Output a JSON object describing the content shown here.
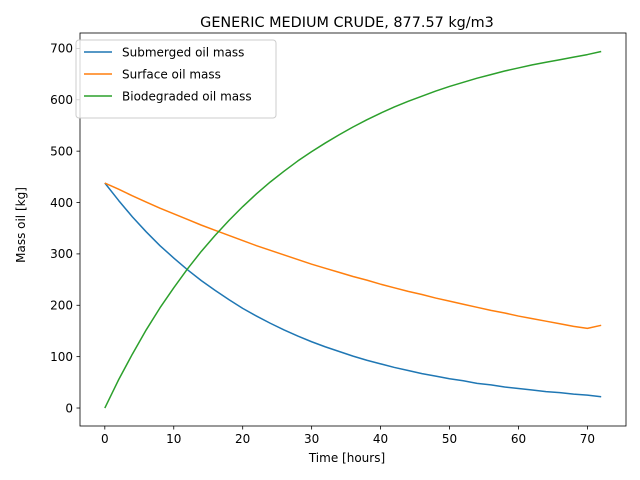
{
  "chart_data": {
    "type": "line",
    "title": "GENERIC MEDIUM CRUDE,  877.57 kg/m3",
    "xlabel": "Time [hours]",
    "ylabel": "Mass oil [kg]",
    "xlim": [
      -3.6,
      75.6
    ],
    "ylim": [
      -35,
      730
    ],
    "xticks": [
      0,
      10,
      20,
      30,
      40,
      50,
      60,
      70
    ],
    "yticks": [
      0,
      100,
      200,
      300,
      400,
      500,
      600,
      700
    ],
    "grid": false,
    "legend_position": "upper-left",
    "x": [
      0,
      2,
      4,
      6,
      8,
      10,
      12,
      14,
      16,
      18,
      20,
      22,
      24,
      26,
      28,
      30,
      32,
      34,
      36,
      38,
      40,
      42,
      44,
      46,
      48,
      50,
      52,
      54,
      56,
      58,
      60,
      62,
      64,
      66,
      68,
      70,
      72
    ],
    "series": [
      {
        "name": "Submerged oil mass",
        "color": "#1f77b4",
        "values": [
          438,
          404,
          372,
          343,
          316,
          292,
          269,
          248,
          229,
          211,
          194,
          179,
          165,
          152,
          140,
          129,
          119,
          110,
          101,
          93,
          86,
          79,
          73,
          67,
          62,
          57,
          53,
          48,
          45,
          41,
          38,
          35,
          32,
          30,
          27,
          25,
          22
        ]
      },
      {
        "name": "Surface oil mass",
        "color": "#ff7f0e",
        "values": [
          438,
          426,
          413,
          401,
          389,
          378,
          367,
          356,
          346,
          336,
          326,
          316,
          307,
          298,
          289,
          280,
          272,
          264,
          256,
          249,
          241,
          234,
          227,
          221,
          214,
          208,
          202,
          196,
          190,
          185,
          179,
          174,
          169,
          164,
          159,
          155,
          161
        ]
      },
      {
        "name": "Biodegraded oil mass",
        "color": "#2ca02c",
        "values": [
          0,
          55,
          105,
          152,
          195,
          234,
          271,
          305,
          336,
          365,
          392,
          417,
          440,
          461,
          481,
          499,
          516,
          532,
          547,
          561,
          574,
          586,
          597,
          607,
          617,
          626,
          634,
          642,
          649,
          656,
          662,
          668,
          673,
          678,
          683,
          688,
          694
        ]
      }
    ]
  }
}
